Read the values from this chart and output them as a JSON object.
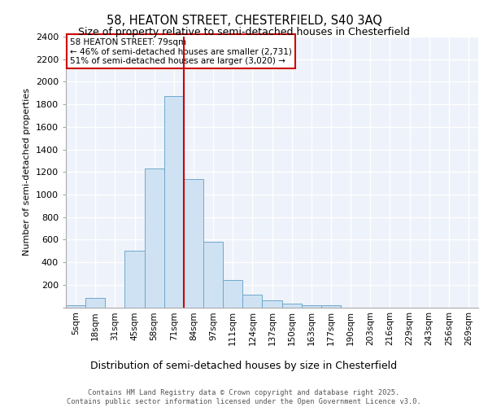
{
  "title1": "58, HEATON STREET, CHESTERFIELD, S40 3AQ",
  "title2": "Size of property relative to semi-detached houses in Chesterfield",
  "xlabel": "Distribution of semi-detached houses by size in Chesterfield",
  "ylabel": "Number of semi-detached properties",
  "footer": "Contains HM Land Registry data © Crown copyright and database right 2025.\nContains public sector information licensed under the Open Government Licence v3.0.",
  "bin_labels": [
    "5sqm",
    "18sqm",
    "31sqm",
    "45sqm",
    "58sqm",
    "71sqm",
    "84sqm",
    "97sqm",
    "111sqm",
    "124sqm",
    "137sqm",
    "150sqm",
    "163sqm",
    "177sqm",
    "190sqm",
    "203sqm",
    "216sqm",
    "229sqm",
    "243sqm",
    "256sqm",
    "269sqm"
  ],
  "bar_values": [
    15,
    80,
    0,
    500,
    1230,
    1870,
    1140,
    580,
    245,
    110,
    60,
    35,
    20,
    15,
    0,
    0,
    0,
    0,
    0,
    0,
    0
  ],
  "bar_color": "#cfe2f3",
  "bar_edge_color": "#6fa8cc",
  "vline_x": 5.5,
  "vline_color": "#cc0000",
  "annotation_box_text": "58 HEATON STREET: 79sqm\n← 46% of semi-detached houses are smaller (2,731)\n51% of semi-detached houses are larger (3,020) →",
  "annotation_box_color": "#cc0000",
  "ylim": [
    0,
    2400
  ],
  "yticks": [
    0,
    200,
    400,
    600,
    800,
    1000,
    1200,
    1400,
    1600,
    1800,
    2000,
    2200,
    2400
  ],
  "background_color": "#eef2fa",
  "grid_color": "#ffffff"
}
